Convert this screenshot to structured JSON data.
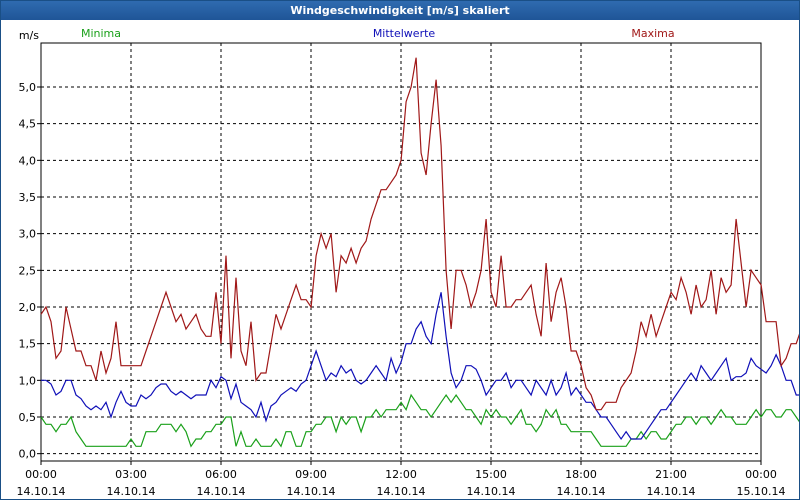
{
  "window": {
    "title": "Windgeschwindigkeit [m/s] skaliert"
  },
  "chart_data": {
    "type": "line",
    "title": "Windgeschwindigkeit [m/s] skaliert",
    "ylabel": "m/s",
    "xlabel": "",
    "ylim": [
      -0.1,
      5.6
    ],
    "xlim": [
      0,
      24
    ],
    "yticks": [
      "0,0",
      "0,5",
      "1,0",
      "1,5",
      "2,0",
      "2,5",
      "3,0",
      "3,5",
      "4,0",
      "4,5",
      "5,0"
    ],
    "xticks": [
      {
        "time": "00:00",
        "date": "14.10.14"
      },
      {
        "time": "03:00",
        "date": "14.10.14"
      },
      {
        "time": "06:00",
        "date": "14.10.14"
      },
      {
        "time": "09:00",
        "date": "14.10.14"
      },
      {
        "time": "12:00",
        "date": "14.10.14"
      },
      {
        "time": "15:00",
        "date": "14.10.14"
      },
      {
        "time": "18:00",
        "date": "14.10.14"
      },
      {
        "time": "21:00",
        "date": "14.10.14"
      },
      {
        "time": "00:00",
        "date": "15.10.14"
      }
    ],
    "grid": true,
    "legend_placement": "top",
    "x_hours_step": 0.1667,
    "series": [
      {
        "name": "Minima",
        "color": "#1aa01a",
        "values": [
          0.5,
          0.4,
          0.4,
          0.3,
          0.4,
          0.4,
          0.5,
          0.3,
          0.2,
          0.1,
          0.1,
          0.1,
          0.1,
          0.1,
          0.1,
          0.1,
          0.1,
          0.1,
          0.2,
          0.1,
          0.1,
          0.3,
          0.3,
          0.3,
          0.4,
          0.4,
          0.4,
          0.3,
          0.4,
          0.3,
          0.1,
          0.2,
          0.2,
          0.3,
          0.3,
          0.4,
          0.4,
          0.5,
          0.5,
          0.1,
          0.3,
          0.1,
          0.1,
          0.2,
          0.1,
          0.1,
          0.1,
          0.2,
          0.1,
          0.3,
          0.3,
          0.1,
          0.1,
          0.3,
          0.3,
          0.4,
          0.4,
          0.5,
          0.5,
          0.3,
          0.5,
          0.4,
          0.5,
          0.5,
          0.3,
          0.5,
          0.5,
          0.6,
          0.5,
          0.6,
          0.6,
          0.6,
          0.7,
          0.6,
          0.8,
          0.7,
          0.6,
          0.6,
          0.5,
          0.6,
          0.7,
          0.8,
          0.7,
          0.8,
          0.7,
          0.6,
          0.6,
          0.5,
          0.4,
          0.6,
          0.5,
          0.6,
          0.5,
          0.5,
          0.4,
          0.5,
          0.6,
          0.4,
          0.4,
          0.3,
          0.4,
          0.6,
          0.5,
          0.6,
          0.4,
          0.4,
          0.3,
          0.3,
          0.3,
          0.3,
          0.3,
          0.2,
          0.1,
          0.1,
          0.1,
          0.1,
          0.1,
          0.1,
          0.2,
          0.2,
          0.3,
          0.2,
          0.3,
          0.3,
          0.2,
          0.2,
          0.3,
          0.4,
          0.4,
          0.5,
          0.5,
          0.4,
          0.5,
          0.5,
          0.4,
          0.5,
          0.6,
          0.5,
          0.5,
          0.4,
          0.4,
          0.4,
          0.5,
          0.6,
          0.5,
          0.6,
          0.6,
          0.5,
          0.5,
          0.6,
          0.6,
          0.5,
          0.4,
          0.3,
          0.2,
          0.4,
          0.3,
          0.1,
          0.3,
          0.1
        ]
      },
      {
        "name": "Mittelwerte",
        "color": "#1010b8",
        "values": [
          1.0,
          1.0,
          0.95,
          0.8,
          0.85,
          1.0,
          1.0,
          0.8,
          0.75,
          0.65,
          0.6,
          0.65,
          0.6,
          0.7,
          0.5,
          0.7,
          0.85,
          0.7,
          0.65,
          0.65,
          0.8,
          0.75,
          0.8,
          0.9,
          0.95,
          0.95,
          0.85,
          0.8,
          0.85,
          0.8,
          0.75,
          0.8,
          0.8,
          0.8,
          1.0,
          0.9,
          1.05,
          1.0,
          0.75,
          0.95,
          0.7,
          0.65,
          0.6,
          0.5,
          0.7,
          0.45,
          0.65,
          0.7,
          0.8,
          0.85,
          0.9,
          0.85,
          0.95,
          1.0,
          1.2,
          1.4,
          1.2,
          1.0,
          1.1,
          1.05,
          1.2,
          1.1,
          1.15,
          1.0,
          0.95,
          1.0,
          1.1,
          1.2,
          1.1,
          1.0,
          1.3,
          1.1,
          1.25,
          1.5,
          1.5,
          1.7,
          1.8,
          1.6,
          1.5,
          1.9,
          2.2,
          1.6,
          1.1,
          0.9,
          1.0,
          1.2,
          1.2,
          1.15,
          1.0,
          0.8,
          0.9,
          1.0,
          1.0,
          1.1,
          0.9,
          1.0,
          1.0,
          0.9,
          0.8,
          1.0,
          0.9,
          0.8,
          1.0,
          0.8,
          0.9,
          1.1,
          0.8,
          0.9,
          0.8,
          0.7,
          0.7,
          0.6,
          0.5,
          0.5,
          0.4,
          0.3,
          0.2,
          0.3,
          0.2,
          0.2,
          0.2,
          0.3,
          0.4,
          0.5,
          0.6,
          0.6,
          0.7,
          0.8,
          0.9,
          1.0,
          1.1,
          1.0,
          1.2,
          1.1,
          1.0,
          1.1,
          1.2,
          1.3,
          1.0,
          1.05,
          1.05,
          1.1,
          1.3,
          1.2,
          1.15,
          1.1,
          1.2,
          1.35,
          1.2,
          1.0,
          1.0,
          0.8,
          0.8,
          0.7,
          0.95,
          0.8,
          0.65
        ]
      },
      {
        "name": "Maxima",
        "color": "#a01818",
        "values": [
          1.9,
          2.0,
          1.8,
          1.3,
          1.4,
          2.0,
          1.7,
          1.4,
          1.4,
          1.2,
          1.2,
          1.0,
          1.4,
          1.1,
          1.3,
          1.8,
          1.2,
          1.2,
          1.2,
          1.2,
          1.2,
          1.4,
          1.6,
          1.8,
          2.0,
          2.2,
          2.0,
          1.8,
          1.9,
          1.7,
          1.8,
          1.9,
          1.7,
          1.6,
          1.6,
          2.2,
          1.5,
          2.7,
          1.3,
          2.4,
          1.4,
          1.2,
          1.8,
          1.0,
          1.1,
          1.1,
          1.5,
          1.9,
          1.7,
          1.9,
          2.1,
          2.3,
          2.1,
          2.1,
          2.0,
          2.7,
          3.0,
          2.8,
          3.0,
          2.2,
          2.7,
          2.6,
          2.8,
          2.6,
          2.8,
          2.9,
          3.2,
          3.4,
          3.6,
          3.6,
          3.7,
          3.8,
          4.0,
          4.8,
          5.0,
          5.4,
          4.1,
          3.8,
          4.5,
          5.1,
          4.2,
          2.5,
          1.7,
          2.5,
          2.5,
          2.3,
          2.0,
          2.2,
          2.5,
          3.2,
          2.2,
          2.0,
          2.7,
          2.0,
          2.0,
          2.1,
          2.1,
          2.2,
          2.3,
          1.9,
          1.6,
          2.6,
          1.8,
          2.2,
          2.4,
          2.0,
          1.4,
          1.4,
          1.2,
          0.9,
          0.8,
          0.6,
          0.6,
          0.7,
          0.7,
          0.7,
          0.9,
          1.0,
          1.1,
          1.4,
          1.8,
          1.6,
          1.9,
          1.6,
          1.8,
          2.0,
          2.2,
          2.1,
          2.4,
          2.2,
          1.9,
          2.3,
          2.0,
          2.1,
          2.5,
          1.9,
          2.4,
          2.2,
          2.3,
          3.2,
          2.6,
          2.0,
          2.5,
          2.4,
          2.3,
          1.8,
          1.8,
          1.8,
          1.2,
          1.3,
          1.5,
          1.5,
          1.7,
          1.4
        ]
      }
    ]
  }
}
